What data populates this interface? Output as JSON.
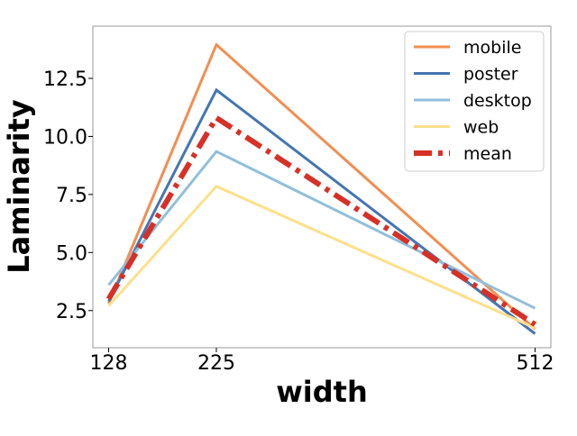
{
  "chart_data": {
    "type": "line",
    "xlabel": "width",
    "ylabel": "Laminarity",
    "x": [
      128,
      225,
      512
    ],
    "xlim": [
      113.8,
      526.2
    ],
    "ylim": [
      0.9,
      14.75
    ],
    "x_ticks": [
      128,
      225,
      512
    ],
    "y_ticks": [
      2.5,
      5.0,
      7.5,
      10.0,
      12.5
    ],
    "grid": false,
    "legend": "top-right",
    "series": [
      {
        "name": "mobile",
        "values": [
          2.8,
          13.95,
          1.7
        ],
        "color": "#f28e52",
        "style": "solid"
      },
      {
        "name": "poster",
        "values": [
          2.9,
          12.0,
          1.5
        ],
        "color": "#4575b4",
        "style": "solid"
      },
      {
        "name": "desktop",
        "values": [
          3.6,
          9.35,
          2.6
        ],
        "color": "#91bfdb",
        "style": "solid"
      },
      {
        "name": "web",
        "values": [
          2.7,
          7.85,
          1.75
        ],
        "color": "#fee08b",
        "style": "solid"
      },
      {
        "name": "mean",
        "values": [
          3.0,
          10.8,
          1.9
        ],
        "color": "#d73027",
        "style": "dashdot"
      }
    ]
  }
}
